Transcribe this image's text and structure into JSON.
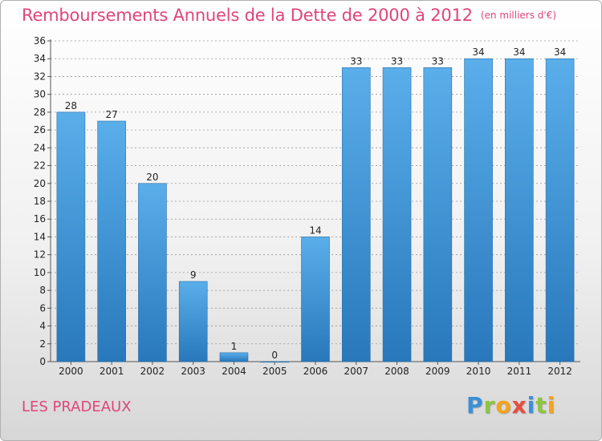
{
  "header": {
    "title": "Remboursements Annuels de la Dette de 2000 à 2012",
    "unit": "(en milliers d'€)"
  },
  "footer": {
    "commune": "LES PRADEAUX",
    "logo_letters": [
      "P",
      "r",
      "o",
      "x",
      "i",
      "t",
      "i"
    ]
  },
  "colors": {
    "title": "#e0457b",
    "bar_top": "#5aaeea",
    "bar_bottom": "#2878bb",
    "grid": "#999999"
  },
  "chart_data": {
    "type": "bar",
    "title": "Remboursements Annuels de la Dette de 2000 à 2012",
    "xlabel": "",
    "ylabel": "",
    "categories": [
      "2000",
      "2001",
      "2002",
      "2003",
      "2004",
      "2005",
      "2006",
      "2007",
      "2008",
      "2009",
      "2010",
      "2011",
      "2012"
    ],
    "values": [
      28,
      27,
      20,
      9,
      1,
      0,
      14,
      33,
      33,
      33,
      34,
      34,
      34
    ],
    "data_labels": [
      "28",
      "27",
      "20",
      "9",
      "1",
      "0",
      "14",
      "33",
      "33",
      "33",
      "34",
      "34",
      "34"
    ],
    "ylim": [
      0,
      36
    ],
    "yticks": [
      "0",
      "2",
      "4",
      "6",
      "8",
      "10",
      "12",
      "14",
      "16",
      "18",
      "20",
      "22",
      "24",
      "26",
      "28",
      "30",
      "32",
      "34",
      "36"
    ],
    "grid": true,
    "legend": "none"
  }
}
